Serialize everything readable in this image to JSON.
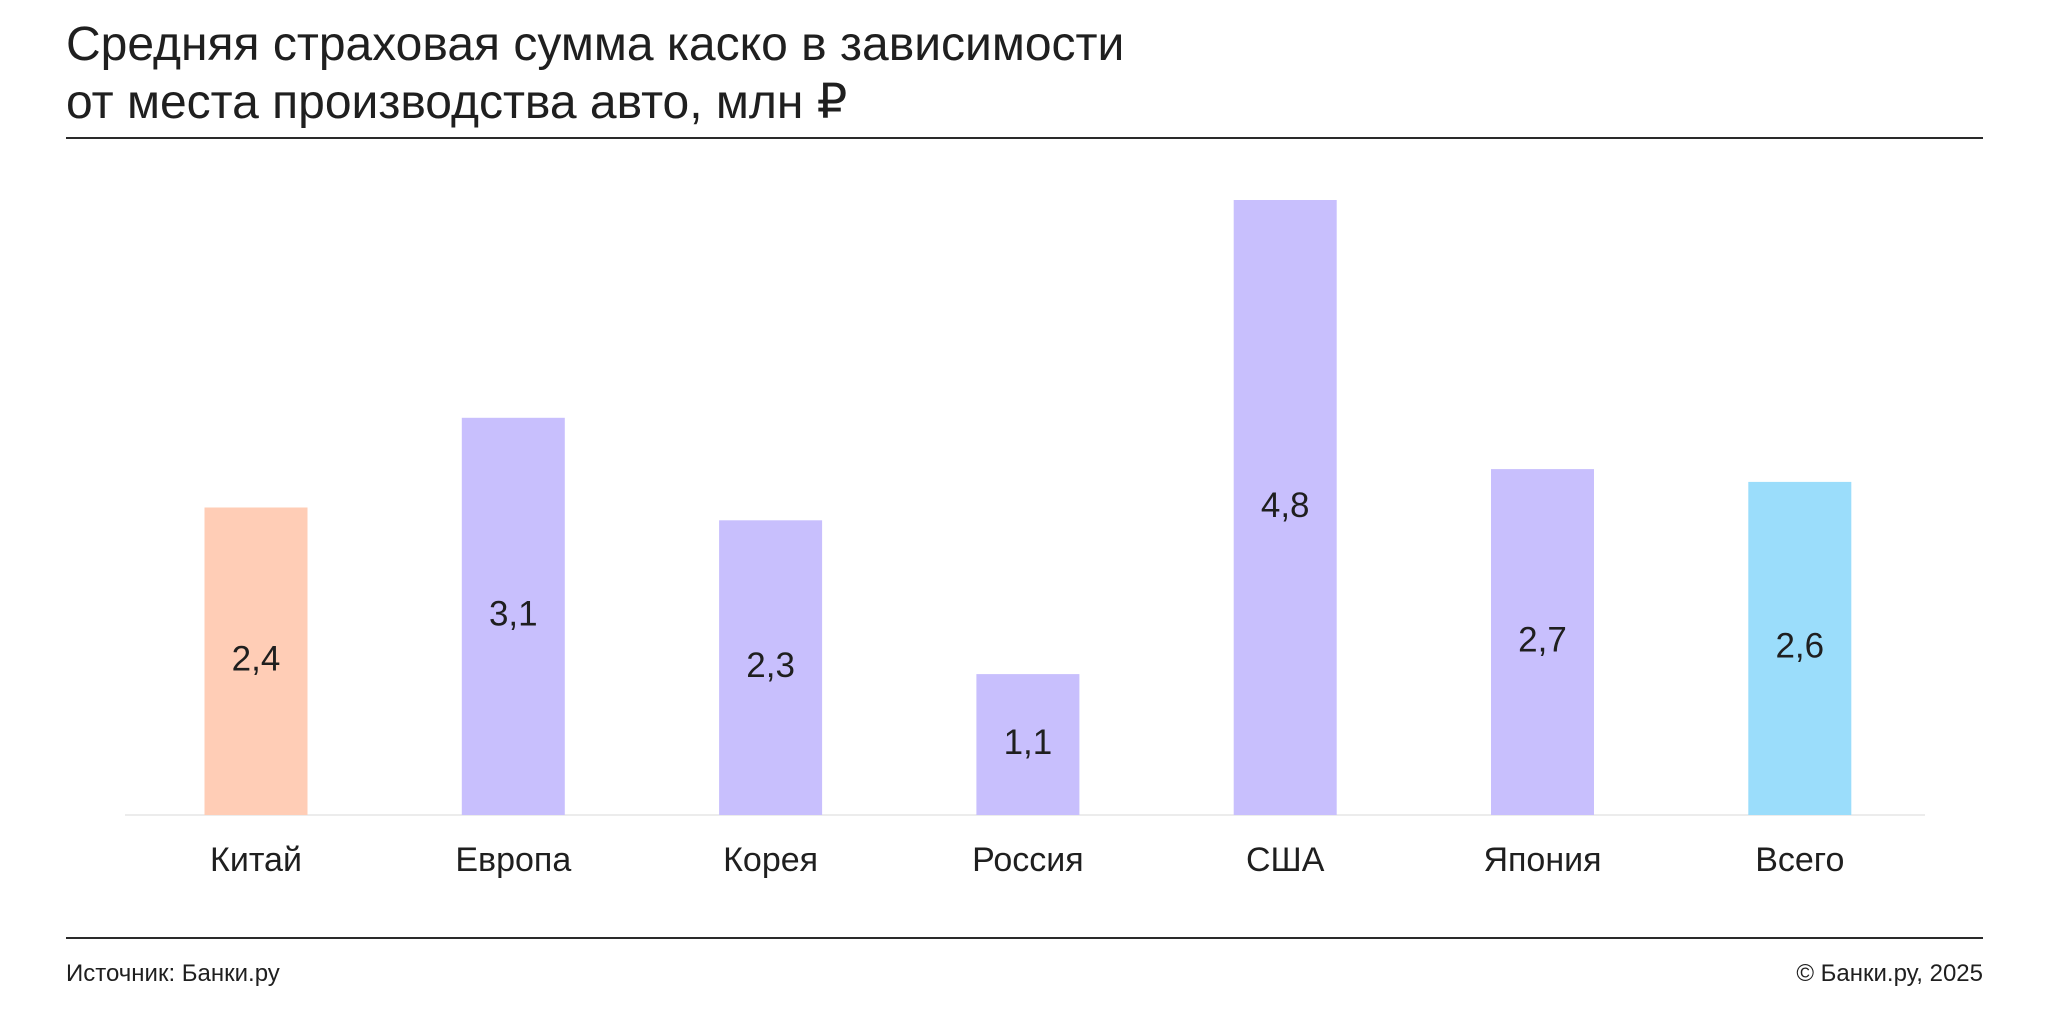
{
  "title_line1": "Средняя страховая сумма каско в зависимости",
  "title_line2": "от места производства авто, млн ₽",
  "footer": {
    "source": "Источник: Банки.ру",
    "copyright": "© Банки.ру, 2025"
  },
  "colors": {
    "china": "#FFCDB6",
    "default": "#C8BFFD",
    "total": "#9BDDFB",
    "baseline": "#ececec",
    "text": "#1f1f1f"
  },
  "chart_data": {
    "type": "bar",
    "title": "Средняя страховая сумма каско в зависимости от места производства авто, млн ₽",
    "categories": [
      "Китай",
      "Европа",
      "Корея",
      "Россия",
      "США",
      "Япония",
      "Всего"
    ],
    "values": [
      2.4,
      3.1,
      2.3,
      1.1,
      4.8,
      2.7,
      2.6
    ],
    "value_labels": [
      "2,4",
      "3,1",
      "2,3",
      "1,1",
      "4,8",
      "2,7",
      "2,6"
    ],
    "bar_colors": [
      "#FFCDB6",
      "#C8BFFD",
      "#C8BFFD",
      "#C8BFFD",
      "#C8BFFD",
      "#C8BFFD",
      "#9BDDFB"
    ],
    "ylim": [
      0,
      4.8
    ],
    "grid": false,
    "legend": "none"
  }
}
